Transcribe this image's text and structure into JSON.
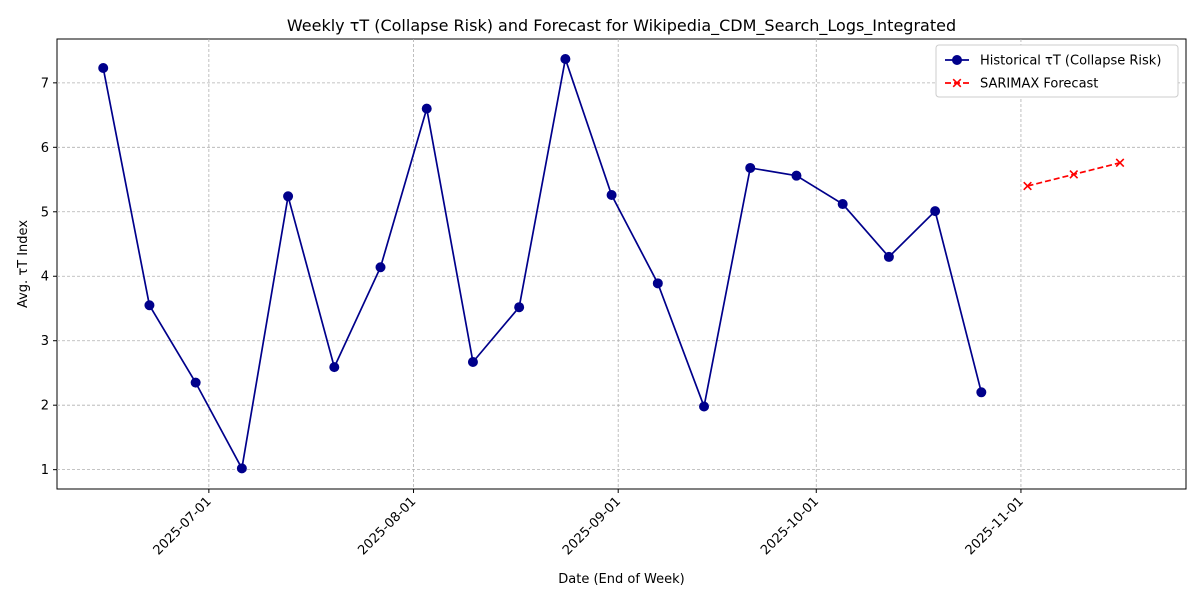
{
  "chart_data": {
    "type": "line",
    "title": "Weekly τT (Collapse Risk) and Forecast for Wikipedia_CDM_Search_Logs_Integrated",
    "xlabel": "Date (End of Week)",
    "ylabel": "Avg. τT Index",
    "x_ticks": [
      "2025-07-01",
      "2025-08-01",
      "2025-09-01",
      "2025-10-01",
      "2025-11-01"
    ],
    "y_ticks": [
      1,
      2,
      3,
      4,
      5,
      6,
      7
    ],
    "xlim": [
      "2025-06-08",
      "2025-11-26"
    ],
    "ylim": [
      0.7,
      7.68
    ],
    "grid": true,
    "legend_position": "top-right",
    "series": [
      {
        "name": "Historical τT (Collapse Risk)",
        "style": "solid",
        "marker": "circle",
        "color": "#00008B",
        "points": [
          {
            "x": "2025-06-15",
            "y": 7.23
          },
          {
            "x": "2025-06-22",
            "y": 3.55
          },
          {
            "x": "2025-06-29",
            "y": 2.35
          },
          {
            "x": "2025-07-06",
            "y": 1.02
          },
          {
            "x": "2025-07-13",
            "y": 5.24
          },
          {
            "x": "2025-07-20",
            "y": 2.59
          },
          {
            "x": "2025-07-27",
            "y": 4.14
          },
          {
            "x": "2025-08-03",
            "y": 6.6
          },
          {
            "x": "2025-08-10",
            "y": 2.67
          },
          {
            "x": "2025-08-17",
            "y": 3.52
          },
          {
            "x": "2025-08-24",
            "y": 7.37
          },
          {
            "x": "2025-08-31",
            "y": 5.26
          },
          {
            "x": "2025-09-07",
            "y": 3.89
          },
          {
            "x": "2025-09-14",
            "y": 1.98
          },
          {
            "x": "2025-09-21",
            "y": 5.68
          },
          {
            "x": "2025-09-28",
            "y": 5.56
          },
          {
            "x": "2025-10-05",
            "y": 5.12
          },
          {
            "x": "2025-10-12",
            "y": 4.3
          },
          {
            "x": "2025-10-19",
            "y": 5.01
          },
          {
            "x": "2025-10-26",
            "y": 2.2
          }
        ]
      },
      {
        "name": "SARIMAX Forecast",
        "style": "dashed",
        "marker": "x",
        "color": "#FF0000",
        "points": [
          {
            "x": "2025-11-02",
            "y": 5.4
          },
          {
            "x": "2025-11-09",
            "y": 5.58
          },
          {
            "x": "2025-11-16",
            "y": 5.76
          }
        ]
      }
    ]
  }
}
